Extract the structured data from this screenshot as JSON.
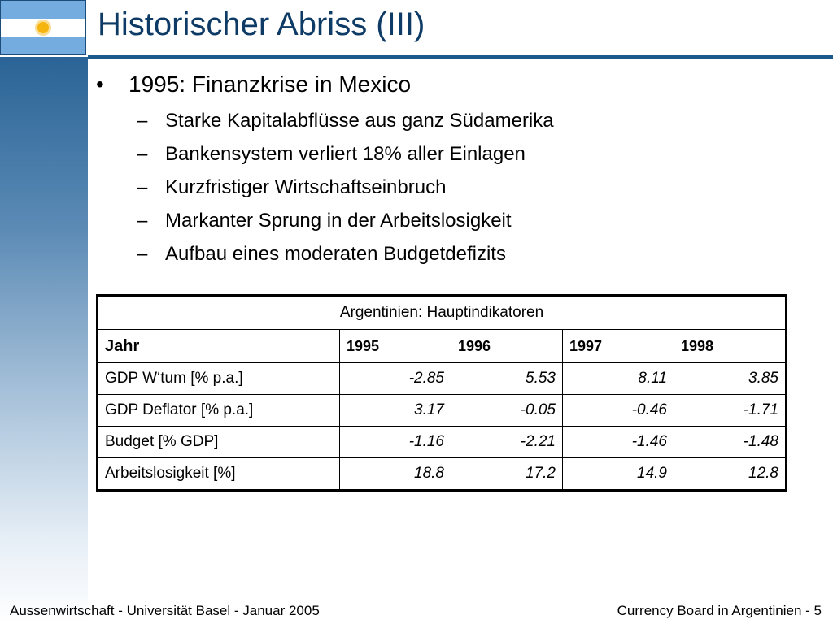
{
  "slide": {
    "title": "Historischer Abriss (III)",
    "main_bullet": "1995: Finanzkrise in Mexico",
    "sub_bullets": [
      "Starke Kapitalabflüsse aus ganz Südamerika",
      "Bankensystem verliert 18% aller Einlagen",
      "Kurzfristiger Wirtschaftseinbruch",
      "Markanter Sprung in der Arbeitslosigkeit",
      "Aufbau eines moderaten Budgetdefizits"
    ],
    "bullet_glyph": "•",
    "dash_glyph": "–"
  },
  "table": {
    "caption": "Argentinien: Hauptindikatoren",
    "header_label": "Jahr",
    "years": [
      "1995",
      "1996",
      "1997",
      "1998"
    ],
    "rows": [
      {
        "label": "GDP W‘tum [% p.a.]",
        "values": [
          "-2.85",
          "5.53",
          "8.11",
          "3.85"
        ]
      },
      {
        "label": "GDP Deflator [% p.a.]",
        "values": [
          "3.17",
          "-0.05",
          "-0.46",
          "-1.71"
        ]
      },
      {
        "label": "Budget [% GDP]",
        "values": [
          "-1.16",
          "-2.21",
          "-1.46",
          "-1.48"
        ]
      },
      {
        "label": "Arbeitslosigkeit [%]",
        "values": [
          "18.8",
          "17.2",
          "14.9",
          "12.8"
        ]
      }
    ]
  },
  "footer": {
    "left": "Aussenwirtschaft - Universität Basel - Januar 2005",
    "right": "Currency Board in Argentinien - 5"
  },
  "icons": {
    "flag": "argentina-flag-icon"
  },
  "colors": {
    "title": "#0d3b66",
    "accent_bar": "#1b5a8a",
    "flag_blue": "#74acdf",
    "sun": "#f6b40e"
  }
}
